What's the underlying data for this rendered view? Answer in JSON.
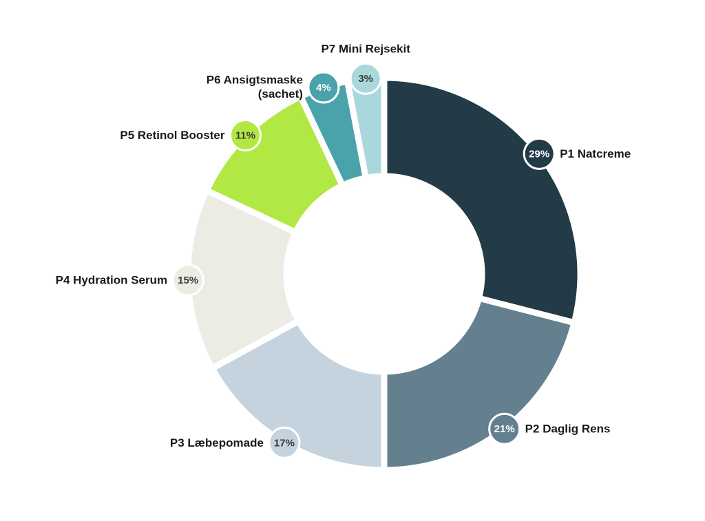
{
  "chart_data": {
    "type": "donut",
    "categories": [
      "P1 Natcreme",
      "P2 Daglig Rens",
      "P3 Læbepomade",
      "P4 Hydration Serum",
      "P5 Retinol Booster",
      "P6 Ansigtsmaske\n(sachet)",
      "P7 Mini Rejsekit"
    ],
    "values": [
      29,
      21,
      17,
      15,
      11,
      4,
      3
    ],
    "value_labels": [
      "29%",
      "21%",
      "17%",
      "15%",
      "11%",
      "4%",
      "3%"
    ],
    "colors": [
      "#233a47",
      "#64808f",
      "#c4d3de",
      "#ecebe4",
      "#b2e843",
      "#4aa3aa",
      "#a8d8dc"
    ]
  }
}
